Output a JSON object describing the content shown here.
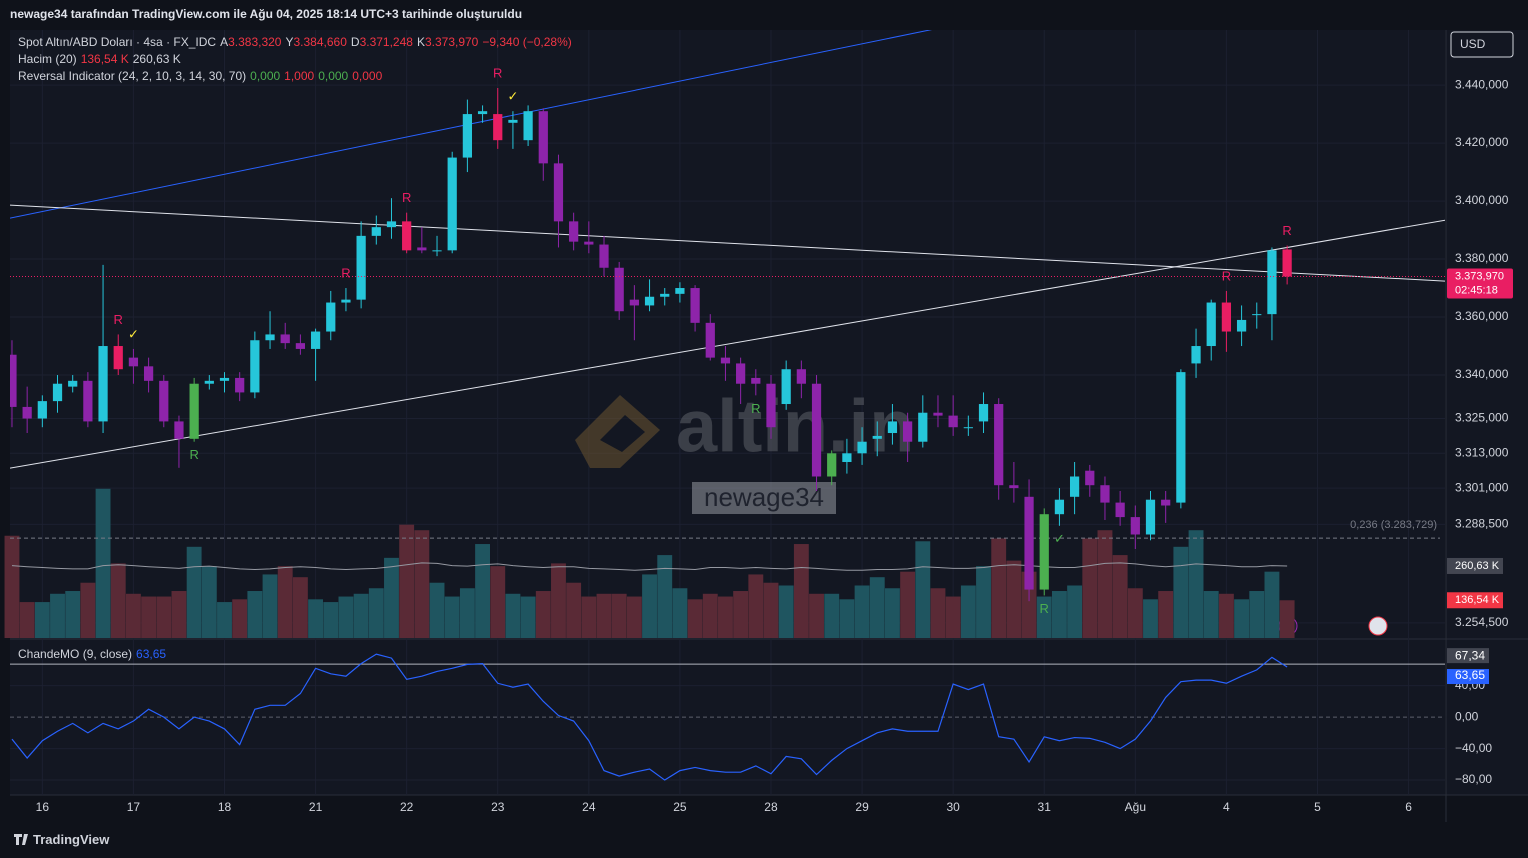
{
  "header": "newage34 tarafından TradingView.com ile Ağu 04, 2025 18:14 UTC+3 tarihinde oluşturuldu",
  "brand": "TradingView",
  "watermark": {
    "logo": "altin.in",
    "user": "newage34"
  },
  "chart_data": [
    {
      "type": "candlestick",
      "title": "Spot Altın/ABD Doları · 4sa · FX_IDC",
      "ohlc_legend": [
        {
          "prefix": "A",
          "value": "3.383,320"
        },
        {
          "prefix": "Y",
          "value": "3.384,660"
        },
        {
          "prefix": "D",
          "value": "3.371,248"
        },
        {
          "prefix": "K",
          "value": "3.373,970"
        }
      ],
      "change": "−9,340 (−0,28%)",
      "change_color": "#f23645",
      "currency": "USD",
      "last_price_label": "3.373,970",
      "countdown": "02:45:18",
      "ohlc": [
        [
          3347,
          3352,
          3322,
          3329
        ],
        [
          3329,
          3336,
          3320,
          3325
        ],
        [
          3325,
          3333,
          3322,
          3331
        ],
        [
          3331,
          3340,
          3327,
          3337
        ],
        [
          3336,
          3340,
          3334,
          3338
        ],
        [
          3338,
          3341,
          3322,
          3324
        ],
        [
          3324,
          3378,
          3320,
          3350
        ],
        [
          3350,
          3354,
          3340,
          3342
        ],
        [
          3346,
          3349,
          3337,
          3343
        ],
        [
          3343,
          3346,
          3334,
          3338
        ],
        [
          3338,
          3340,
          3322,
          3324
        ],
        [
          3324,
          3326,
          3308,
          3318
        ],
        [
          3318,
          3339,
          3317,
          3337
        ],
        [
          3337,
          3340,
          3335,
          3338
        ],
        [
          3338,
          3341,
          3334,
          3339
        ],
        [
          3339,
          3341,
          3331,
          3334
        ],
        [
          3334,
          3355,
          3332,
          3352
        ],
        [
          3352,
          3362,
          3349,
          3354
        ],
        [
          3354,
          3358,
          3349,
          3351
        ],
        [
          3351,
          3354,
          3347,
          3349
        ],
        [
          3349,
          3356,
          3338,
          3355
        ],
        [
          3355,
          3369,
          3352,
          3365
        ],
        [
          3365,
          3370,
          3362,
          3366
        ],
        [
          3366,
          3393,
          3363,
          3388
        ],
        [
          3388,
          3395,
          3385,
          3391
        ],
        [
          3391,
          3401,
          3387,
          3393
        ],
        [
          3393,
          3396,
          3382,
          3383
        ],
        [
          3384,
          3391,
          3382,
          3383
        ],
        [
          3383,
          3388,
          3381,
          3383
        ],
        [
          3383,
          3417,
          3382,
          3415
        ],
        [
          3415,
          3435,
          3410,
          3430
        ],
        [
          3430,
          3433,
          3427,
          3431
        ],
        [
          3430,
          3439,
          3418,
          3421
        ],
        [
          3427,
          3431,
          3418,
          3428
        ],
        [
          3421,
          3433,
          3419,
          3431
        ],
        [
          3431,
          3432,
          3407,
          3413
        ],
        [
          3413,
          3416,
          3384,
          3393
        ],
        [
          3393,
          3396,
          3383,
          3386
        ],
        [
          3386,
          3393,
          3382,
          3385
        ],
        [
          3385,
          3388,
          3374,
          3377
        ],
        [
          3377,
          3379,
          3359,
          3362
        ],
        [
          3366,
          3371,
          3352,
          3364
        ],
        [
          3364,
          3373,
          3362,
          3367
        ],
        [
          3367,
          3370,
          3364,
          3368
        ],
        [
          3368,
          3372,
          3365,
          3370
        ],
        [
          3370,
          3371,
          3355,
          3358
        ],
        [
          3358,
          3361,
          3345,
          3346
        ],
        [
          3346,
          3350,
          3338,
          3344
        ],
        [
          3344,
          3346,
          3330,
          3337
        ],
        [
          3339,
          3342,
          3333,
          3337
        ],
        [
          3337,
          3340,
          3318,
          3322
        ],
        [
          3330,
          3345,
          3328,
          3342
        ],
        [
          3342,
          3345,
          3332,
          3337
        ],
        [
          3337,
          3340,
          3300,
          3305
        ],
        [
          3305,
          3314,
          3302,
          3313
        ],
        [
          3310,
          3318,
          3306,
          3313
        ],
        [
          3313,
          3322,
          3309,
          3317
        ],
        [
          3318,
          3324,
          3312,
          3319
        ],
        [
          3320,
          3330,
          3316,
          3324
        ],
        [
          3324,
          3327,
          3310,
          3317
        ],
        [
          3317,
          3333,
          3315,
          3327
        ],
        [
          3327,
          3333,
          3322,
          3326
        ],
        [
          3326,
          3333,
          3319,
          3322
        ],
        [
          3322,
          3326,
          3319,
          3322
        ],
        [
          3324,
          3334,
          3320,
          3330
        ],
        [
          3330,
          3332,
          3297,
          3302
        ],
        [
          3302,
          3310,
          3296,
          3301
        ],
        [
          3298,
          3304,
          3262,
          3266
        ],
        [
          3266,
          3294,
          3264,
          3292
        ],
        [
          3292,
          3301,
          3288,
          3297
        ],
        [
          3298,
          3310,
          3292,
          3305
        ],
        [
          3307,
          3309,
          3298,
          3302
        ],
        [
          3302,
          3305,
          3290,
          3296
        ],
        [
          3296,
          3300,
          3288,
          3291
        ],
        [
          3291,
          3295,
          3280,
          3285
        ],
        [
          3285,
          3300,
          3283,
          3297
        ],
        [
          3297,
          3300,
          3289,
          3295
        ],
        [
          3296,
          3342,
          3294,
          3341
        ],
        [
          3344,
          3356,
          3339,
          3350
        ],
        [
          3350,
          3366,
          3345,
          3365
        ],
        [
          3365,
          3369,
          3348,
          3355
        ],
        [
          3355,
          3364,
          3350,
          3359
        ],
        [
          3361,
          3365,
          3356,
          3361
        ],
        [
          3361,
          3384,
          3352,
          3383
        ],
        [
          3383.32,
          3384.66,
          3371.248,
          3373.97
        ]
      ],
      "colors": [
        "#8e24aa",
        "#8e24aa",
        "#26c6da",
        "#26c6da",
        "#26c6da",
        "#8e24aa",
        "#26c6da",
        "#e91e63",
        "#8e24aa",
        "#8e24aa",
        "#8e24aa",
        "#8e24aa",
        "#4caf50",
        "#26c6da",
        "#26c6da",
        "#8e24aa",
        "#26c6da",
        "#26c6da",
        "#8e24aa",
        "#8e24aa",
        "#26c6da",
        "#26c6da",
        "#26c6da",
        "#26c6da",
        "#26c6da",
        "#26c6da",
        "#e91e63",
        "#8e24aa",
        "#26c6da",
        "#26c6da",
        "#26c6da",
        "#26c6da",
        "#e91e63",
        "#26c6da",
        "#26c6da",
        "#8e24aa",
        "#8e24aa",
        "#8e24aa",
        "#8e24aa",
        "#8e24aa",
        "#8e24aa",
        "#8e24aa",
        "#26c6da",
        "#26c6da",
        "#26c6da",
        "#8e24aa",
        "#8e24aa",
        "#8e24aa",
        "#8e24aa",
        "#8e24aa",
        "#8e24aa",
        "#26c6da",
        "#8e24aa",
        "#8e24aa",
        "#4caf50",
        "#26c6da",
        "#26c6da",
        "#26c6da",
        "#26c6da",
        "#8e24aa",
        "#26c6da",
        "#8e24aa",
        "#8e24aa",
        "#26c6da",
        "#26c6da",
        "#8e24aa",
        "#8e24aa",
        "#8e24aa",
        "#4caf50",
        "#26c6da",
        "#26c6da",
        "#8e24aa",
        "#8e24aa",
        "#8e24aa",
        "#8e24aa",
        "#26c6da",
        "#8e24aa",
        "#26c6da",
        "#26c6da",
        "#26c6da",
        "#e91e63",
        "#26c6da",
        "#26c6da",
        "#26c6da",
        "#e91e63"
      ],
      "xlim": [
        -0.13,
        94.4
      ],
      "xticks": [
        {
          "value": 2,
          "label": "16"
        },
        {
          "value": 8,
          "label": "17"
        },
        {
          "value": 14,
          "label": "18"
        },
        {
          "value": 20,
          "label": "21"
        },
        {
          "value": 26,
          "label": "22"
        },
        {
          "value": 32,
          "label": "23"
        },
        {
          "value": 38,
          "label": "24"
        },
        {
          "value": 44,
          "label": "25"
        },
        {
          "value": 50,
          "label": "28"
        },
        {
          "value": 56,
          "label": "29"
        },
        {
          "value": 62,
          "label": "30"
        },
        {
          "value": 68,
          "label": "31"
        },
        {
          "value": 74,
          "label": "Ağu"
        },
        {
          "value": 80,
          "label": "4"
        },
        {
          "value": 86,
          "label": "5"
        },
        {
          "value": 92,
          "label": "6"
        }
      ],
      "ylim": [
        3249.3,
        3459
      ],
      "yticks": [
        {
          "value": 3440,
          "label": "3.440,000"
        },
        {
          "value": 3420,
          "label": "3.420,000"
        },
        {
          "value": 3400,
          "label": "3.400,000"
        },
        {
          "value": 3380,
          "label": "3.380,000"
        },
        {
          "value": 3360,
          "label": "3.360,000"
        },
        {
          "value": 3340,
          "label": "3.340,000"
        },
        {
          "value": 3325,
          "label": "3.325,000"
        },
        {
          "value": 3313,
          "label": "3.313,000"
        },
        {
          "value": 3301,
          "label": "3.301,000"
        },
        {
          "value": 3288.5,
          "label": "3.288,500"
        },
        {
          "value": 3254.5,
          "label": "3.254,500"
        }
      ],
      "grid": true,
      "fib": {
        "value": 3283.729,
        "label": "0,236 (3.283,729)"
      },
      "lines": [
        {
          "from": [
            -0.13,
            3394.1
          ],
          "to": [
            61.1,
            3459.7
          ],
          "color": "#2962ff"
        },
        {
          "from": [
            -0.13,
            3398.6
          ],
          "to": [
            94.4,
            3372.4
          ],
          "color": "#e0e3eb"
        },
        {
          "from": [
            -0.13,
            3307.9
          ],
          "to": [
            94.4,
            3393.4
          ],
          "color": "#e0e3eb"
        }
      ],
      "reversal_indicator": {
        "name": "Reversal Indicator (24, 2, 10, 3, 14, 30, 70)",
        "values": [
          "0,000",
          "1,000",
          "0,000",
          "0,000"
        ],
        "colors": [
          "#4caf50",
          "#f23645",
          "#4caf50",
          "#f23645"
        ]
      },
      "reversal_marks": [
        {
          "bar": 7,
          "text": "R",
          "color": "#e91e63",
          "side": "above"
        },
        {
          "bar": 8,
          "text": "✓",
          "color": "#ffeb3b",
          "side": "above"
        },
        {
          "bar": 12,
          "text": "R",
          "color": "#4caf50",
          "side": "below"
        },
        {
          "bar": 22,
          "text": "R",
          "color": "#e91e63",
          "side": "above"
        },
        {
          "bar": 26,
          "text": "R",
          "color": "#e91e63",
          "side": "above"
        },
        {
          "bar": 32,
          "text": "R",
          "color": "#e91e63",
          "side": "above"
        },
        {
          "bar": 33,
          "text": "✓",
          "color": "#ffeb3b",
          "side": "above"
        },
        {
          "bar": 49,
          "text": "R",
          "color": "#4caf50",
          "side": "below"
        },
        {
          "bar": 68,
          "text": "R",
          "color": "#4caf50",
          "side": "below"
        },
        {
          "bar": 69,
          "text": "✓",
          "color": "#4caf50",
          "side": "below"
        },
        {
          "bar": 80,
          "text": "R",
          "color": "#e91e63",
          "side": "above"
        },
        {
          "bar": 84,
          "text": "R",
          "color": "#e91e63",
          "side": "above"
        }
      ],
      "volume": {
        "name": "Hacim (20)",
        "last_label": "136,54 K",
        "ma_label": "260,63 K",
        "up_color": "#1f5560",
        "down_color": "#5a2a36",
        "ma_color": "#9598a1",
        "ylim": [
          0,
          2200
        ],
        "values": [
          370,
          130,
          130,
          160,
          170,
          200,
          540,
          270,
          160,
          150,
          150,
          170,
          330,
          260,
          130,
          140,
          170,
          230,
          260,
          220,
          140,
          130,
          150,
          160,
          180,
          290,
          410,
          390,
          200,
          150,
          180,
          340,
          260,
          160,
          150,
          170,
          270,
          200,
          150,
          160,
          160,
          150,
          230,
          300,
          180,
          140,
          160,
          150,
          170,
          230,
          200,
          190,
          340,
          160,
          160,
          140,
          190,
          220,
          180,
          240,
          350,
          180,
          150,
          190,
          260,
          360,
          280,
          240,
          150,
          170,
          190,
          360,
          390,
          300,
          180,
          140,
          170,
          330,
          390,
          170,
          160,
          140,
          170,
          240,
          136.54
        ],
        "ma": [
          262,
          258,
          255,
          252,
          250,
          250,
          262,
          265,
          262,
          258,
          255,
          252,
          258,
          260,
          255,
          250,
          248,
          250,
          255,
          258,
          255,
          250,
          248,
          250,
          252,
          258,
          265,
          272,
          270,
          262,
          260,
          265,
          268,
          262,
          258,
          255,
          258,
          258,
          252,
          250,
          248,
          245,
          248,
          252,
          250,
          248,
          255,
          255,
          252,
          255,
          252,
          250,
          255,
          252,
          248,
          245,
          245,
          248,
          248,
          250,
          258,
          255,
          252,
          252,
          255,
          262,
          265,
          262,
          258,
          255,
          255,
          262,
          270,
          272,
          268,
          262,
          258,
          262,
          268,
          265,
          262,
          258,
          258,
          262,
          260.63
        ]
      }
    },
    {
      "type": "line",
      "title": "ChandeMO (9, close)",
      "last_label": "63,65",
      "color": "#2962ff",
      "values": [
        -28,
        -52,
        -30,
        -18,
        -8,
        -20,
        -8,
        -15,
        -5,
        10,
        0,
        -15,
        0,
        -5,
        -15,
        -35,
        10,
        15,
        15,
        30,
        62,
        55,
        52,
        68,
        80,
        75,
        48,
        52,
        58,
        62,
        67,
        68,
        43,
        38,
        42,
        20,
        2,
        -5,
        -30,
        -68,
        -75,
        -70,
        -66,
        -80,
        -68,
        -64,
        -68,
        -70,
        -70,
        -62,
        -72,
        -50,
        -53,
        -73,
        -55,
        -40,
        -30,
        -20,
        -15,
        -18,
        -18,
        -18,
        42,
        35,
        42,
        -25,
        -28,
        -57,
        -25,
        -30,
        -26,
        -27,
        -32,
        -40,
        -28,
        -5,
        25,
        45,
        47,
        47,
        43,
        52,
        60,
        76,
        63.65
      ],
      "ylim": [
        -99,
        98
      ],
      "yticks": [
        {
          "value": 40,
          "label": "40,00"
        },
        {
          "value": 0,
          "label": "0,00"
        },
        {
          "value": -40,
          "label": "−40,00"
        },
        {
          "value": -80,
          "label": "−80,00"
        }
      ],
      "upper": {
        "value": 67.34,
        "label": "67,34"
      }
    }
  ]
}
